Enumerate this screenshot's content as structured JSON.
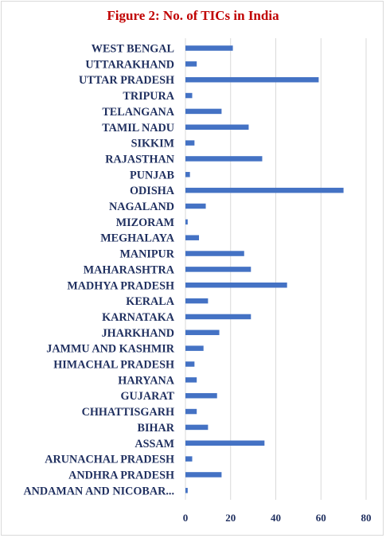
{
  "chart_data": {
    "type": "bar",
    "orientation": "horizontal",
    "title": "Figure  2: No. of TICs in India",
    "categories": [
      "WEST BENGAL",
      "UTTARAKHAND",
      "UTTAR PRADESH",
      "TRIPURA",
      "TELANGANA",
      "TAMIL NADU",
      "SIKKIM",
      "RAJASTHAN",
      "PUNJAB",
      "ODISHA",
      "NAGALAND",
      "MIZORAM",
      "MEGHALAYA",
      "MANIPUR",
      "MAHARASHTRA",
      "MADHYA PRADESH",
      "KERALA",
      "KARNATAKA",
      "JHARKHAND",
      "JAMMU AND KASHMIR",
      "HIMACHAL PRADESH",
      "HARYANA",
      "GUJARAT",
      "CHHATTISGARH",
      "BIHAR",
      "ASSAM",
      "ARUNACHAL PRADESH",
      "ANDHRA PRADESH",
      "ANDAMAN AND NICOBAR..."
    ],
    "values": [
      21,
      5,
      59,
      3,
      16,
      28,
      4,
      34,
      2,
      70,
      9,
      1,
      6,
      26,
      29,
      45,
      10,
      29,
      15,
      8,
      4,
      5,
      14,
      5,
      10,
      35,
      3,
      16,
      1
    ],
    "xlim": [
      0,
      80
    ],
    "xticks": [
      "0",
      "20",
      "40",
      "60",
      "80"
    ],
    "grid": true,
    "bar_color": "#4472c4",
    "grid_color": "#d9d9d9",
    "label_color": "#1f2f5f",
    "title_color": "#c00000",
    "legend": "none"
  }
}
